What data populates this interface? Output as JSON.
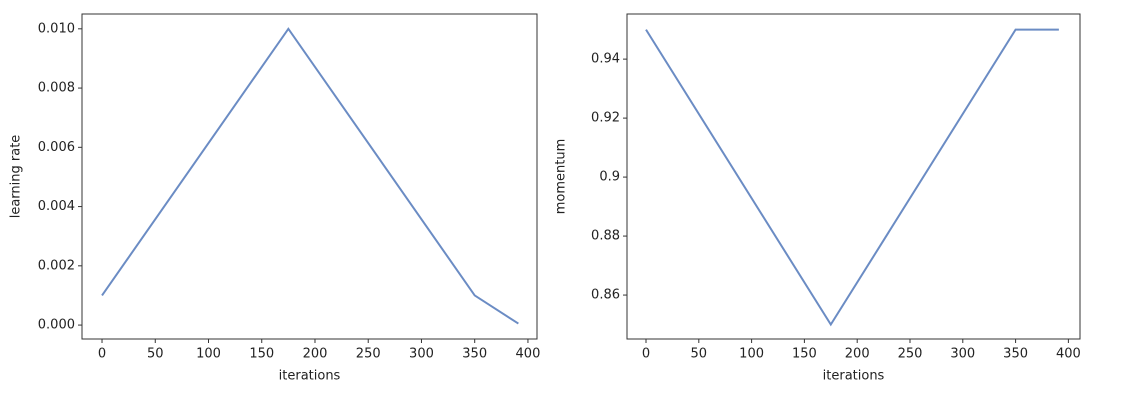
{
  "chart_data": [
    {
      "type": "line",
      "xlabel": "iterations",
      "ylabel": "learning rate",
      "x": [
        0,
        175,
        350,
        391
      ],
      "values": [
        0.001,
        0.01,
        0.001,
        5e-05
      ],
      "color": "#6b8cc4",
      "xlim": [
        -18.8,
        408.5
      ],
      "ylim": [
        -0.00047,
        0.0105
      ],
      "xticks": [
        0,
        50,
        100,
        150,
        200,
        250,
        300,
        350,
        400
      ],
      "yticks": [
        {
          "value": 0,
          "label": "0.000"
        },
        {
          "value": 0.002,
          "label": "0.002"
        },
        {
          "value": 0.004,
          "label": "0.004"
        },
        {
          "value": 0.006,
          "label": "0.006"
        },
        {
          "value": 0.008,
          "label": "0.008"
        },
        {
          "value": 0.01,
          "label": "0.010"
        }
      ]
    },
    {
      "type": "line",
      "xlabel": "iterations",
      "ylabel": "momentum",
      "x": [
        0,
        175,
        350,
        391
      ],
      "values": [
        0.95,
        0.85,
        0.95,
        0.95
      ],
      "color": "#6b8cc4",
      "xlim": [
        -18,
        411
      ],
      "ylim": [
        0.8451,
        0.9553
      ],
      "xticks": [
        0,
        50,
        100,
        150,
        200,
        250,
        300,
        350,
        400
      ],
      "yticks": [
        0.86,
        0.88,
        0.9,
        0.92,
        0.94
      ]
    }
  ]
}
